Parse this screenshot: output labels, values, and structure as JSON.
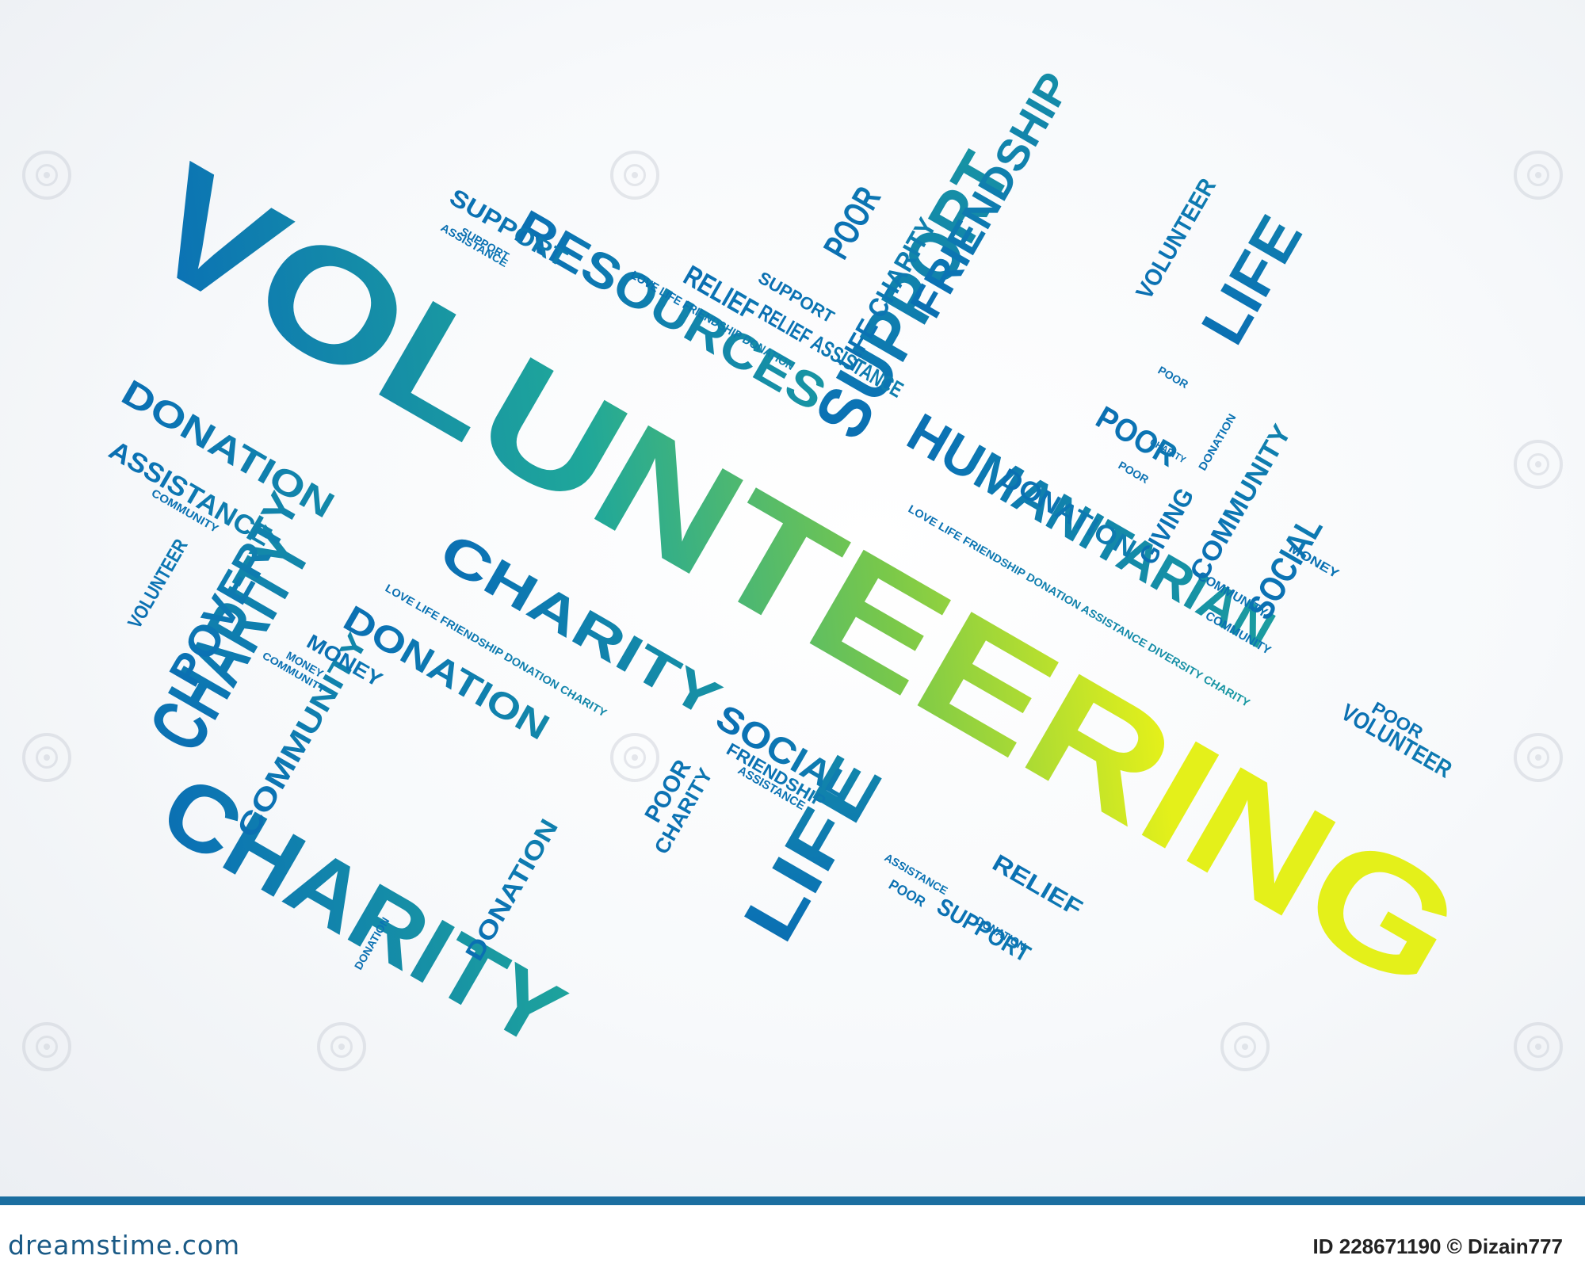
{
  "colors": {
    "gradient_dark_blue": "#0a3f8a",
    "gradient_blue": "#0b73b4",
    "gradient_teal": "#1fa79a",
    "gradient_green": "#79c84a",
    "gradient_yellow": "#e4f01a",
    "footer_band": "#1b6ea0"
  },
  "watermark_icon": "dreamstime-spiral-icon",
  "words": [
    "VOLUNTEERING",
    "CHARITY",
    "CHARITY",
    "SUPPORT",
    "HUMANITARIAN",
    "RESOURCES",
    "FRIENDSHIP",
    "LIFE",
    "LIFE",
    "DONATION",
    "DONATION",
    "DONATION",
    "POVERTY",
    "COMMUNITY",
    "SOCIAL",
    "SOCIAL",
    "COMMUNITY",
    "ASSISTANCE",
    "POOR",
    "POOR",
    "CHARITY",
    "RELIEF",
    "SUPPORT",
    "VOLUNTEER",
    "VOLUNTEER",
    "VOLUNTEER",
    "MONEY",
    "DONATION",
    "GIVING",
    "POOR",
    "SUPPORT",
    "RELIEF",
    "POOR",
    "DONATION",
    "CHARITY",
    "ASSISTANCE",
    "FRIENDSHIP",
    "COMMUNITY",
    "COMMUNITY",
    "LOVE LIFE FRIENDSHIP DONATION ASSISTANCE DIVERSITY CHARITY",
    "LOVE LIFE FRIENDSHIP DONATION CHARITY",
    "LOVE LIFE FRIENDSHIP DONATION",
    "SUPPORT",
    "ASSISTANCE",
    "LIFE CHARITY",
    "RELIEF ASSISTANCE",
    "SUPPORT",
    "POOR",
    "COMMUNITY",
    "MONEY",
    "COMMUNITY",
    "CHARITY",
    "DONATION",
    "MONEY",
    "POOR",
    "DONATION",
    "ASSISTANCE",
    "POOR"
  ],
  "footer": {
    "brand": "dreamstime.com",
    "credit": "ID 228671190 © Dizain777"
  }
}
